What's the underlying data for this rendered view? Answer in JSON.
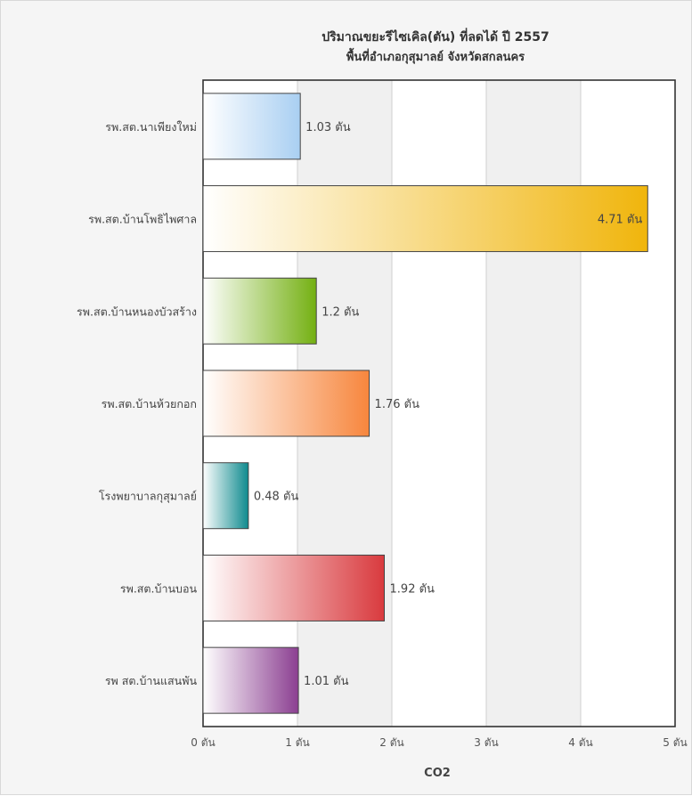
{
  "chart_data": {
    "type": "bar",
    "orientation": "horizontal",
    "title": "ปริมาณขยะรีไซเคิล(ตัน) ที่ลดได้ ปี 2557",
    "subtitle": "พื้นที่อำเภอกุสุมาลย์ จังหวัดสกลนคร",
    "xlabel": "CO2",
    "ylabel": "",
    "xlim": [
      0,
      5
    ],
    "unit": "ตัน",
    "x_ticks": [
      "0 ตัน",
      "1 ตัน",
      "2 ตัน",
      "3 ตัน",
      "4 ตัน",
      "5 ตัน"
    ],
    "grid": true,
    "categories": [
      "รพ.สต.นาเพียงใหม่",
      "รพ.สต.บ้านโพธิไพศาล",
      "รพ.สต.บ้านหนองบัวสร้าง",
      "รพ.สต.บ้านห้วยกอก",
      "โรงพยาบาลกุสุมาลย์",
      "รพ.สต.บ้านบอน",
      "รพ สต.บ้านแสนพัน"
    ],
    "values": [
      1.03,
      4.71,
      1.2,
      1.76,
      0.48,
      1.92,
      1.01
    ],
    "data_labels": [
      "1.03 ตัน",
      "4.71 ตัน",
      "1.2 ตัน",
      "1.76 ตัน",
      "0.48 ตัน",
      "1.92 ตัน",
      "1.01 ตัน"
    ],
    "colors": [
      "#a9cff2",
      "#f0b50c",
      "#74b012",
      "#f7863d",
      "#0e8a8e",
      "#d93a3e",
      "#8b3f91"
    ]
  }
}
